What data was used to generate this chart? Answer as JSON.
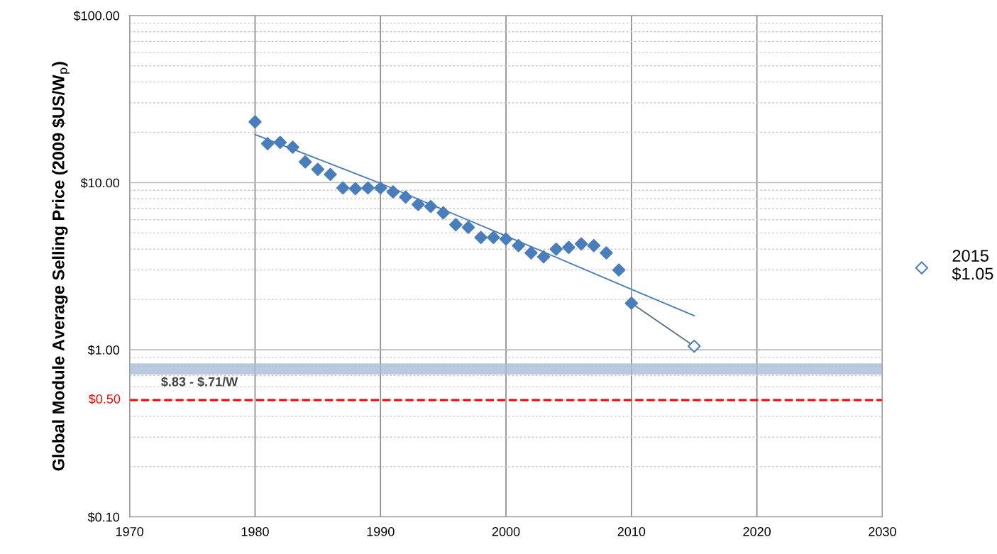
{
  "chart_data": {
    "type": "scatter",
    "ylabel": "Global Module Average Selling Price (2009 $US/W$_{p}$)",
    "log": "y",
    "grid": true,
    "legend": "right",
    "xlim": [
      1970,
      2030
    ],
    "xticks": [
      1970,
      1980,
      1990,
      2000,
      2010,
      2020,
      2030
    ],
    "ylim": [
      0.1,
      100
    ],
    "yticks": [
      {
        "value": 0.1,
        "label": "$0.10"
      },
      {
        "value": 1,
        "label": "$1.00"
      },
      {
        "value": 10,
        "label": "$10.00"
      },
      {
        "value": 100,
        "label": "$100.00"
      }
    ],
    "series": [
      {
        "marker": "diamond",
        "color": "#4a7ebb",
        "x": [
          1980,
          1981,
          1982,
          1983,
          1984,
          1985,
          1986,
          1987,
          1988,
          1989,
          1990,
          1991,
          1992,
          1993,
          1994,
          1995,
          1996,
          1997,
          1998,
          1999,
          2000,
          2001,
          2002,
          2003,
          2004,
          2005,
          2006,
          2007,
          2008,
          2009,
          2010
        ],
        "values": [
          23.1,
          17.1,
          17.4,
          16.3,
          13.3,
          12.0,
          11.2,
          9.3,
          9.2,
          9.3,
          9.3,
          8.8,
          8.2,
          7.4,
          7.2,
          6.6,
          5.6,
          5.4,
          4.7,
          4.7,
          4.6,
          4.2,
          3.8,
          3.6,
          4.0,
          4.1,
          4.3,
          4.2,
          3.8,
          3.0,
          1.9
        ]
      },
      {
        "type": "line",
        "marker": "none",
        "line_style": "solid",
        "color": "#4a7ebb",
        "x": [
          1980,
          1990,
          2000,
          2010,
          2015
        ],
        "values": [
          19.4,
          9.9,
          4.8,
          2.3,
          1.6
        ]
      },
      {
        "type": "line",
        "marker": "none",
        "line_style": "solid",
        "color": "#5a6f80",
        "x": [
          2010,
          2015
        ],
        "values": [
          1.9,
          1.05
        ]
      },
      {
        "marker": "diamond",
        "name": "2015\n$1.05",
        "color": "#4a7ebb",
        "x": [
          2015
        ],
        "values": [
          1.05
        ]
      }
    ],
    "bands": [
      {
        "axis": "y",
        "from": 0.71,
        "to": 0.83,
        "label": "$.83 - $.71/W",
        "color": "#a7bdd6"
      }
    ],
    "ref_lines": [
      {
        "axis": "y",
        "value": 0.5,
        "label": "$0.50",
        "color": "#ff0000",
        "line_style": "dashed"
      }
    ]
  }
}
